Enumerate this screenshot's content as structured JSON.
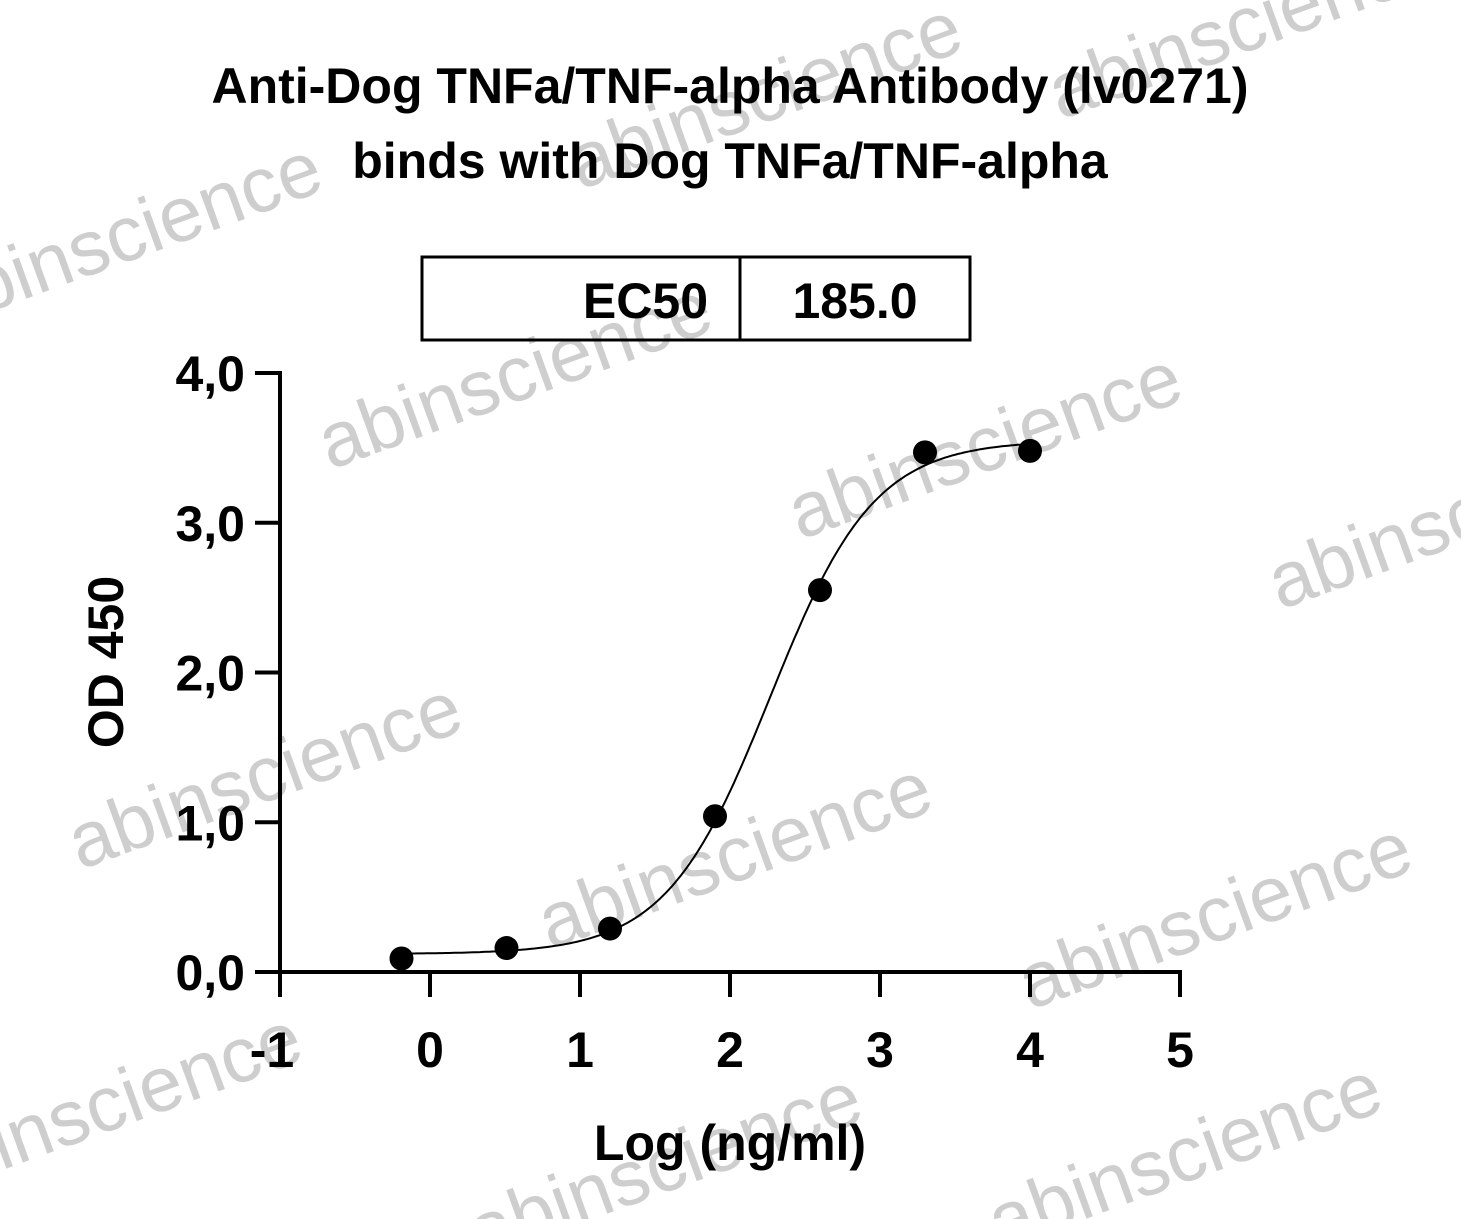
{
  "watermark": "abinscience",
  "chart_data": {
    "type": "scatter",
    "title": [
      "Anti-Dog TNFa/TNF-alpha Antibody (lv0271)",
      "binds with Dog TNFa/TNF-alpha"
    ],
    "xlabel": "Log (ng/ml)",
    "ylabel": "OD 450",
    "xlim": [
      -1,
      5
    ],
    "ylim": [
      0,
      4
    ],
    "xticks": [
      "-1",
      "0",
      "1",
      "2",
      "3",
      "4",
      "5"
    ],
    "yticks": [
      "0,0",
      "1,0",
      "2,0",
      "3,0",
      "4,0"
    ],
    "grid": false,
    "legend_table": {
      "label": "EC50",
      "value": "185.0"
    },
    "series": [
      {
        "x": [
          -0.19,
          0.51,
          1.2,
          1.9,
          2.6,
          3.3,
          4.0
        ],
        "y": [
          0.09,
          0.16,
          0.29,
          1.04,
          2.55,
          3.47,
          3.48
        ],
        "fit": "4PL sigmoidal curve"
      }
    ]
  }
}
